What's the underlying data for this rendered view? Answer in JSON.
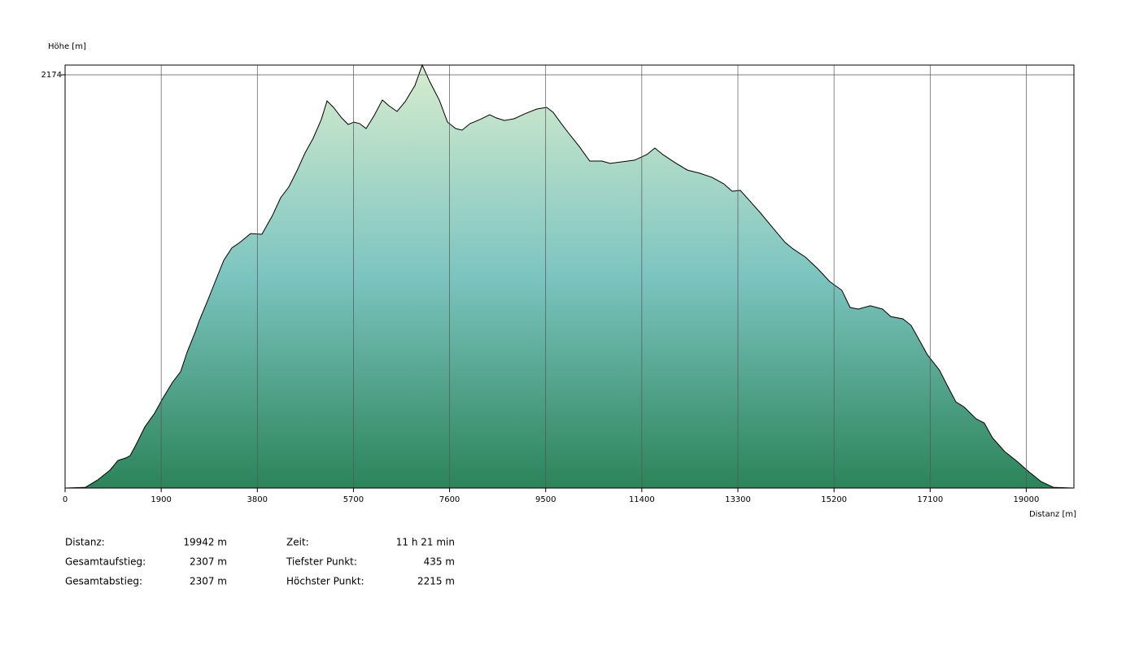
{
  "chart_data": {
    "type": "area",
    "ylabel": "Höhe [m]",
    "xlabel": "Distanz [m]",
    "xlim": [
      0,
      19942
    ],
    "xticks": [
      0,
      1900,
      3800,
      5700,
      7600,
      9500,
      11400,
      13300,
      15200,
      17100,
      19000
    ],
    "ylim": [
      435,
      2215
    ],
    "yticks": [
      2174
    ],
    "grid": true,
    "line_color": "#000000",
    "fill_colors": [
      "#d6ecce",
      "#7cc4c0",
      "#2b8459"
    ],
    "x": [
      0,
      402,
      643,
      884,
      1045,
      1206,
      1286,
      1415,
      1576,
      1769,
      1930,
      2123,
      2283,
      2412,
      2573,
      2653,
      2814,
      2975,
      3136,
      3296,
      3457,
      3666,
      3891,
      4100,
      4261,
      4422,
      4583,
      4743,
      4904,
      5065,
      5178,
      5306,
      5467,
      5596,
      5709,
      5821,
      5950,
      6111,
      6272,
      6400,
      6561,
      6722,
      6915,
      7060,
      7205,
      7397,
      7558,
      7719,
      7847,
      8008,
      8201,
      8394,
      8522,
      8683,
      8876,
      9085,
      9326,
      9519,
      9648,
      9808,
      9969,
      10162,
      10371,
      10612,
      10773,
      11015,
      11256,
      11497,
      11658,
      11819,
      12060,
      12301,
      12542,
      12783,
      13024,
      13186,
      13346,
      13507,
      13748,
      13990,
      14231,
      14392,
      14633,
      14874,
      15115,
      15356,
      15517,
      15678,
      15919,
      16160,
      16321,
      16562,
      16723,
      16884,
      17045,
      17286,
      17447,
      17608,
      17768,
      18010,
      18170,
      18331,
      18572,
      18814,
      19055,
      19296,
      19537,
      19942
    ],
    "values": [
      435,
      438,
      469,
      510,
      551,
      562,
      572,
      623,
      692,
      750,
      812,
      880,
      925,
      1007,
      1092,
      1140,
      1222,
      1308,
      1393,
      1445,
      1469,
      1506,
      1503,
      1582,
      1657,
      1702,
      1770,
      1845,
      1907,
      1986,
      2064,
      2037,
      1993,
      1965,
      1975,
      1969,
      1948,
      2003,
      2068,
      2044,
      2020,
      2061,
      2129,
      2215,
      2147,
      2068,
      1975,
      1948,
      1941,
      1969,
      1986,
      2006,
      1993,
      1982,
      1989,
      2010,
      2030,
      2037,
      2016,
      1969,
      1924,
      1873,
      1811,
      1811,
      1801,
      1808,
      1815,
      1838,
      1866,
      1838,
      1804,
      1773,
      1760,
      1743,
      1715,
      1684,
      1688,
      1650,
      1592,
      1530,
      1469,
      1441,
      1407,
      1359,
      1304,
      1267,
      1195,
      1188,
      1202,
      1188,
      1157,
      1147,
      1120,
      1058,
      996,
      931,
      863,
      798,
      777,
      726,
      709,
      647,
      589,
      548,
      503,
      462,
      438,
      435
    ]
  },
  "stats": [
    [
      {
        "label": "Distanz:",
        "value": "19942 m"
      },
      {
        "label": "Zeit:",
        "value": "11 h 21 min"
      }
    ],
    [
      {
        "label": "Gesamtaufstieg:",
        "value": "2307 m"
      },
      {
        "label": "Tiefster Punkt:",
        "value": "435 m"
      }
    ],
    [
      {
        "label": "Gesamtabstieg:",
        "value": "2307 m"
      },
      {
        "label": "Höchster Punkt:",
        "value": "2215 m"
      }
    ]
  ]
}
